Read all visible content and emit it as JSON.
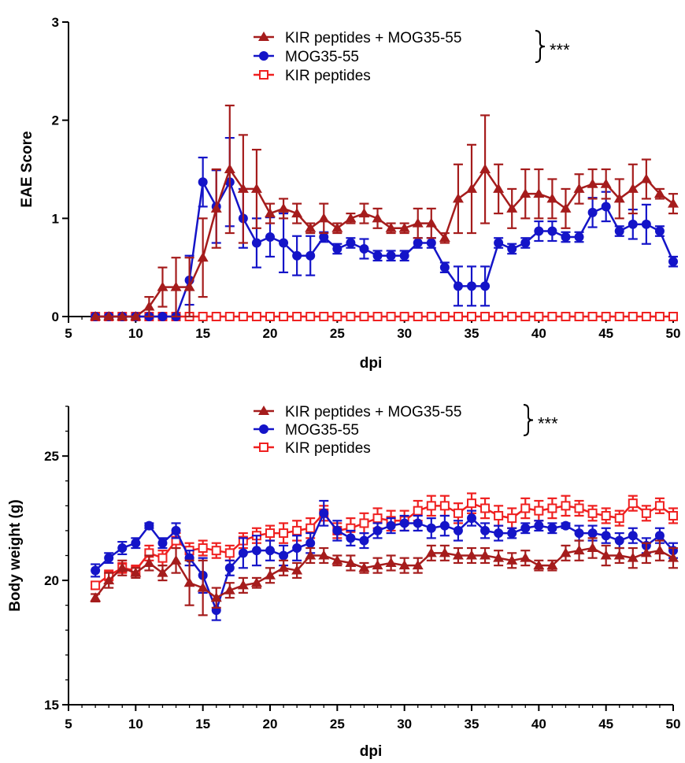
{
  "chart_data": [
    {
      "type": "line",
      "xlabel": "dpi",
      "ylabel": "EAE Score",
      "xlim": [
        5,
        50
      ],
      "ylim": [
        0,
        3
      ],
      "x_ticks": [
        "5",
        "10",
        "15",
        "20",
        "25",
        "30",
        "35",
        "40",
        "45",
        "50"
      ],
      "y_ticks": [
        "0",
        "1",
        "2",
        "3"
      ],
      "legend": {
        "placement": "top-center"
      },
      "significance": "***",
      "x": [
        7,
        8,
        9,
        10,
        11,
        12,
        13,
        14,
        15,
        16,
        17,
        18,
        19,
        20,
        21,
        22,
        23,
        24,
        25,
        26,
        27,
        28,
        29,
        30,
        31,
        32,
        33,
        34,
        35,
        36,
        37,
        38,
        39,
        40,
        41,
        42,
        43,
        44,
        45,
        46,
        47,
        48,
        49,
        50
      ],
      "series": [
        {
          "name": "KIR peptides + MOG35-55",
          "color": "#a51c1c",
          "marker": "triangle",
          "values": [
            0,
            0,
            0,
            0,
            0.1,
            0.3,
            0.3,
            0.3,
            0.6,
            1.1,
            1.5,
            1.3,
            1.3,
            1.05,
            1.1,
            1.05,
            0.9,
            1.0,
            0.9,
            1.0,
            1.05,
            1.0,
            0.9,
            0.9,
            0.95,
            0.95,
            0.8,
            1.2,
            1.3,
            1.5,
            1.3,
            1.1,
            1.25,
            1.25,
            1.2,
            1.1,
            1.3,
            1.35,
            1.35,
            1.2,
            1.3,
            1.4,
            1.25,
            1.15
          ],
          "errors": [
            0,
            0,
            0,
            0,
            0.1,
            0.2,
            0.3,
            0.3,
            0.4,
            0.4,
            0.65,
            0.55,
            0.4,
            0.1,
            0.1,
            0.1,
            0.05,
            0.15,
            0.05,
            0.05,
            0.1,
            0.1,
            0.05,
            0.05,
            0.15,
            0.15,
            0.05,
            0.35,
            0.45,
            0.55,
            0.25,
            0.2,
            0.25,
            0.25,
            0.2,
            0.2,
            0.15,
            0.15,
            0.15,
            0.2,
            0.25,
            0.2,
            0.05,
            0.1
          ]
        },
        {
          "name": "MOG35-55",
          "color": "#1414c8",
          "marker": "circle",
          "values": [
            0,
            0,
            0,
            0,
            0,
            0,
            0,
            0.37,
            1.37,
            1.12,
            1.37,
            1.0,
            0.75,
            0.81,
            0.75,
            0.62,
            0.62,
            0.81,
            0.69,
            0.75,
            0.69,
            0.62,
            0.62,
            0.62,
            0.75,
            0.75,
            0.5,
            0.31,
            0.31,
            0.31,
            0.75,
            0.69,
            0.75,
            0.87,
            0.87,
            0.81,
            0.81,
            1.06,
            1.12,
            0.87,
            0.94,
            0.94,
            0.87,
            0.56
          ],
          "errors": [
            0,
            0,
            0,
            0,
            0,
            0,
            0,
            0.25,
            0.25,
            0.37,
            0.45,
            0.3,
            0.25,
            0.2,
            0.3,
            0.2,
            0.2,
            0.05,
            0.05,
            0.05,
            0.1,
            0.05,
            0.05,
            0.05,
            0.05,
            0.05,
            0.05,
            0.2,
            0.2,
            0.2,
            0.05,
            0.05,
            0.05,
            0.1,
            0.1,
            0.05,
            0.05,
            0.15,
            0.15,
            0.05,
            0.15,
            0.2,
            0.05,
            0.05
          ]
        },
        {
          "name": "KIR peptides",
          "color": "#ef2020",
          "marker": "open-square",
          "values": [
            0,
            0,
            0,
            0,
            0,
            0,
            0,
            0,
            0,
            0,
            0,
            0,
            0,
            0,
            0,
            0,
            0,
            0,
            0,
            0,
            0,
            0,
            0,
            0,
            0,
            0,
            0,
            0,
            0,
            0,
            0,
            0,
            0,
            0,
            0,
            0,
            0,
            0,
            0,
            0,
            0,
            0,
            0,
            0
          ],
          "errors": [
            0,
            0,
            0,
            0,
            0,
            0,
            0,
            0,
            0,
            0,
            0,
            0,
            0,
            0,
            0,
            0,
            0,
            0,
            0,
            0,
            0,
            0,
            0,
            0,
            0,
            0,
            0,
            0,
            0,
            0,
            0,
            0,
            0,
            0,
            0,
            0,
            0,
            0,
            0,
            0,
            0,
            0,
            0,
            0
          ]
        }
      ]
    },
    {
      "type": "line",
      "xlabel": "dpi",
      "ylabel": "Body weight (g)",
      "xlim": [
        5,
        50
      ],
      "ylim": [
        15,
        27
      ],
      "x_ticks": [
        "5",
        "10",
        "15",
        "20",
        "25",
        "30",
        "35",
        "40",
        "45",
        "50"
      ],
      "y_ticks": [
        "15",
        "20",
        "25"
      ],
      "y_tick_values": [
        15,
        20,
        25
      ],
      "legend": {
        "placement": "top-center"
      },
      "significance": "***",
      "x": [
        7,
        8,
        9,
        10,
        11,
        12,
        13,
        14,
        15,
        16,
        17,
        18,
        19,
        20,
        21,
        22,
        23,
        24,
        25,
        26,
        27,
        28,
        29,
        30,
        31,
        32,
        33,
        34,
        35,
        36,
        37,
        38,
        39,
        40,
        41,
        42,
        43,
        44,
        45,
        46,
        47,
        48,
        49,
        50
      ],
      "series": [
        {
          "name": "KIR peptides + MOG35-55",
          "color": "#a51c1c",
          "marker": "triangle",
          "values": [
            19.3,
            20.0,
            20.5,
            20.3,
            20.7,
            20.3,
            20.8,
            19.9,
            19.7,
            19.3,
            19.6,
            19.8,
            19.9,
            20.2,
            20.5,
            20.4,
            21.0,
            21.0,
            20.8,
            20.7,
            20.5,
            20.6,
            20.7,
            20.6,
            20.6,
            21.1,
            21.1,
            21.0,
            21.0,
            21.0,
            20.9,
            20.8,
            20.9,
            20.6,
            20.6,
            21.1,
            21.2,
            21.3,
            21.0,
            21.0,
            20.9,
            21.1,
            21.2,
            20.9
          ],
          "errors": [
            0.15,
            0.3,
            0.3,
            0.2,
            0.3,
            0.3,
            0.5,
            0.9,
            1.1,
            0.4,
            0.3,
            0.3,
            0.2,
            0.3,
            0.3,
            0.3,
            0.3,
            0.3,
            0.2,
            0.3,
            0.2,
            0.3,
            0.3,
            0.3,
            0.3,
            0.3,
            0.3,
            0.3,
            0.3,
            0.3,
            0.3,
            0.3,
            0.3,
            0.2,
            0.2,
            0.3,
            0.4,
            0.4,
            0.4,
            0.3,
            0.4,
            0.4,
            0.4,
            0.4
          ]
        },
        {
          "name": "MOG35-55",
          "color": "#1414c8",
          "marker": "circle",
          "values": [
            20.4,
            20.9,
            21.3,
            21.5,
            22.2,
            21.5,
            22.0,
            20.9,
            20.2,
            18.8,
            20.5,
            21.1,
            21.2,
            21.2,
            21.0,
            21.3,
            21.5,
            22.7,
            22.0,
            21.7,
            21.6,
            22.0,
            22.2,
            22.3,
            22.3,
            22.1,
            22.2,
            22.0,
            22.5,
            22.0,
            21.9,
            21.9,
            22.1,
            22.2,
            22.1,
            22.2,
            21.9,
            21.9,
            21.8,
            21.6,
            21.8,
            21.4,
            21.8,
            21.2
          ],
          "errors": [
            0.25,
            0.2,
            0.25,
            0.2,
            0.1,
            0.2,
            0.3,
            0.3,
            0.7,
            0.4,
            0.3,
            0.6,
            0.6,
            0.4,
            0.4,
            0.5,
            0.4,
            0.5,
            0.4,
            0.3,
            0.3,
            0.3,
            0.3,
            0.3,
            0.3,
            0.4,
            0.4,
            0.4,
            0.3,
            0.3,
            0.3,
            0.2,
            0.2,
            0.2,
            0.2,
            0.1,
            0.3,
            0.3,
            0.3,
            0.3,
            0.3,
            0.3,
            0.3,
            0.3
          ]
        },
        {
          "name": "KIR peptides",
          "color": "#ef2020",
          "marker": "open-square",
          "values": [
            19.8,
            20.2,
            20.5,
            20.4,
            21.1,
            20.9,
            21.6,
            21.2,
            21.3,
            21.2,
            21.1,
            21.6,
            21.8,
            21.9,
            21.9,
            22.0,
            22.1,
            22.7,
            22.0,
            22.1,
            22.3,
            22.5,
            22.4,
            22.4,
            22.8,
            23.0,
            23.0,
            22.7,
            23.1,
            22.9,
            22.6,
            22.5,
            22.9,
            22.8,
            22.9,
            23.0,
            22.9,
            22.7,
            22.6,
            22.5,
            23.1,
            22.7,
            23.0,
            22.6
          ],
          "errors": [
            0.15,
            0.2,
            0.2,
            0.2,
            0.3,
            0.3,
            0.3,
            0.3,
            0.3,
            0.3,
            0.3,
            0.3,
            0.3,
            0.3,
            0.4,
            0.4,
            0.4,
            0.3,
            0.3,
            0.4,
            0.4,
            0.4,
            0.4,
            0.4,
            0.4,
            0.4,
            0.4,
            0.4,
            0.4,
            0.4,
            0.4,
            0.4,
            0.4,
            0.4,
            0.4,
            0.4,
            0.3,
            0.3,
            0.3,
            0.3,
            0.3,
            0.3,
            0.3,
            0.3
          ]
        }
      ]
    }
  ]
}
